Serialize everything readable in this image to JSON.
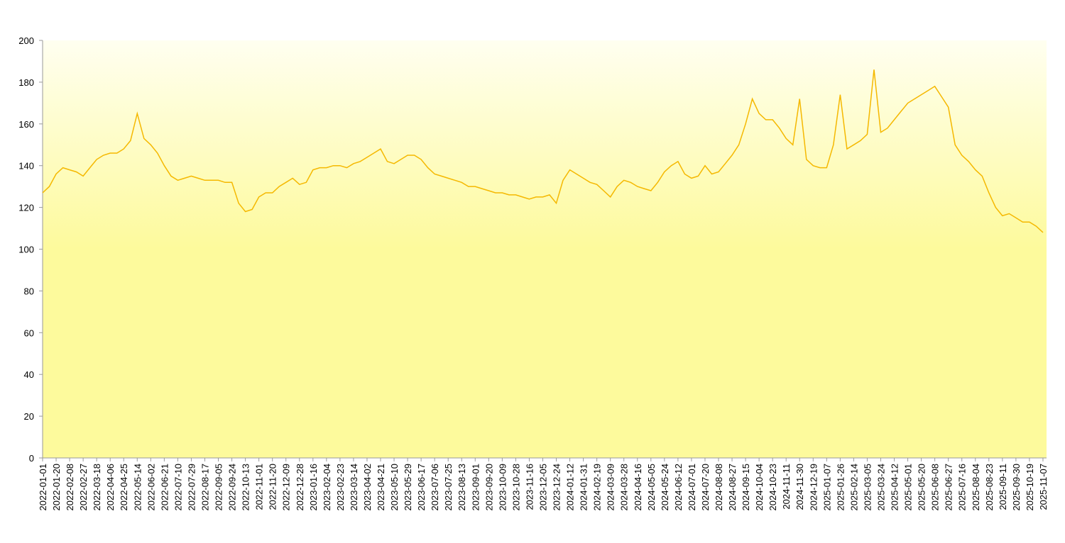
{
  "chart_data": {
    "type": "line",
    "categories": [
      "2022-01-01",
      null,
      "2022-01-20",
      null,
      "2022-02-08",
      null,
      "2022-02-27",
      null,
      "2022-03-18",
      null,
      "2022-04-06",
      null,
      "2022-04-25",
      null,
      "2022-05-14",
      null,
      "2022-06-02",
      null,
      "2022-06-21",
      null,
      "2022-07-10",
      null,
      "2022-07-29",
      null,
      "2022-08-17",
      null,
      "2022-09-05",
      null,
      "2022-09-24",
      null,
      "2022-10-13",
      null,
      "2022-11-01",
      null,
      "2022-11-20",
      null,
      "2022-12-09",
      null,
      "2022-12-28",
      null,
      "2023-01-16",
      null,
      "2023-02-04",
      null,
      "2023-02-23",
      null,
      "2023-03-14",
      null,
      "2023-04-02",
      null,
      "2023-04-21",
      null,
      "2023-05-10",
      null,
      "2023-05-29",
      null,
      "2023-06-17",
      null,
      "2023-07-06",
      null,
      "2023-07-25",
      null,
      "2023-08-13",
      null,
      "2023-09-01",
      null,
      "2023-09-20",
      null,
      "2023-10-09",
      null,
      "2023-10-28",
      null,
      "2023-11-16",
      null,
      "2023-12-05",
      null,
      "2023-12-24",
      null,
      "2024-01-12",
      null,
      "2024-01-31",
      null,
      "2024-02-19",
      null,
      "2024-03-09",
      null,
      "2024-03-28",
      null,
      "2024-04-16",
      null,
      "2024-05-05",
      null,
      "2024-05-24",
      null,
      "2024-06-12",
      null,
      "2024-07-01",
      null,
      "2024-07-20",
      null,
      "2024-08-08",
      null,
      "2024-08-27",
      null,
      "2024-09-15",
      null,
      "2024-10-04",
      null,
      "2024-10-23",
      null,
      "2024-11-11",
      null,
      "2024-11-30",
      null,
      "2024-12-19",
      null,
      "2025-01-07",
      null,
      "2025-01-26",
      null,
      "2025-02-14",
      null,
      "2025-03-05",
      null,
      "2025-03-24",
      null,
      "2025-04-12",
      null,
      "2025-05-01",
      null,
      "2025-05-20",
      null,
      "2025-06-08",
      null,
      "2025-06-27",
      null,
      "2025-07-16",
      null,
      "2025-08-04",
      null,
      "2025-08-23",
      null,
      "2025-09-11",
      null,
      "2025-09-30",
      null,
      "2025-10-19",
      null,
      "2025-11-07"
    ],
    "values": [
      127,
      130,
      136,
      139,
      138,
      137,
      135,
      139,
      143,
      145,
      146,
      146,
      148,
      152,
      165,
      153,
      150,
      146,
      140,
      135,
      133,
      134,
      135,
      134,
      133,
      133,
      133,
      132,
      132,
      122,
      118,
      119,
      125,
      127,
      127,
      130,
      132,
      134,
      131,
      132,
      138,
      139,
      139,
      140,
      140,
      139,
      141,
      142,
      144,
      146,
      148,
      142,
      141,
      143,
      145,
      145,
      143,
      139,
      136,
      135,
      134,
      133,
      132,
      130,
      130,
      129,
      128,
      127,
      127,
      126,
      126,
      125,
      124,
      125,
      125,
      126,
      122,
      133,
      138,
      136,
      134,
      132,
      131,
      128,
      125,
      130,
      133,
      132,
      130,
      129,
      128,
      132,
      137,
      140,
      142,
      136,
      134,
      135,
      140,
      136,
      137,
      141,
      145,
      150,
      160,
      172,
      165,
      162,
      162,
      158,
      153,
      150,
      172,
      143,
      140,
      139,
      139,
      150,
      174,
      148,
      150,
      152,
      155,
      186,
      156,
      158,
      162,
      166,
      170,
      172,
      174,
      176,
      178,
      173,
      168,
      150,
      145,
      142,
      138,
      135,
      127,
      120,
      116,
      117,
      115,
      113,
      113,
      111,
      108
    ],
    "color": "#f5b800",
    "ylim": [
      0,
      200
    ],
    "yticks": [
      0,
      20,
      40,
      60,
      80,
      100,
      120,
      140,
      160,
      180,
      200
    ]
  }
}
